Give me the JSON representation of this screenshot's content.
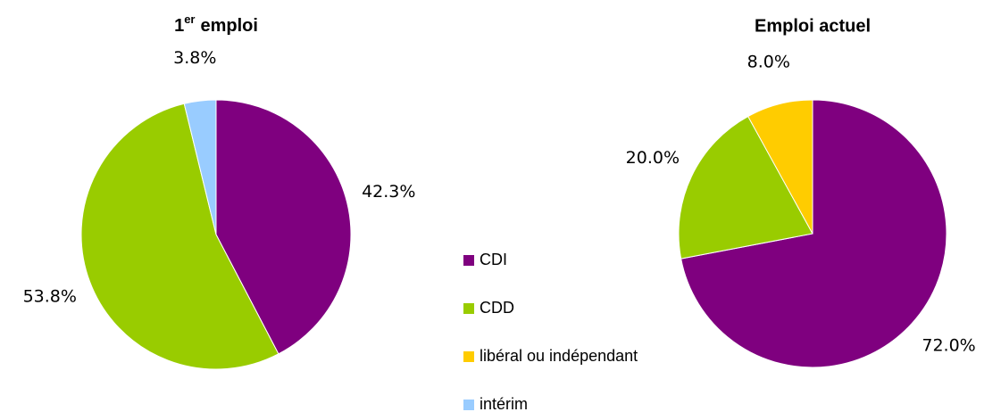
{
  "chart_data": [
    {
      "type": "pie",
      "title": "1",
      "title_superscript": "er",
      "title_rest": "emploi",
      "values": [
        42.3,
        53.8,
        null,
        3.8
      ],
      "value_labels": [
        "42.3%",
        "53.8%",
        null,
        "3.8%"
      ]
    },
    {
      "type": "pie",
      "title": "Emploi actuel",
      "values": [
        72.0,
        20.0,
        8.0,
        null
      ],
      "value_labels": [
        "72.0%",
        "20.0%",
        "8.0%",
        null
      ]
    }
  ],
  "legend": {
    "categories": [
      "CDI",
      "CDD",
      "libéral ou indépendant",
      "intérim"
    ],
    "colors": [
      "#7f007f",
      "#99cc00",
      "#ffcc00",
      "#99ccff"
    ]
  }
}
